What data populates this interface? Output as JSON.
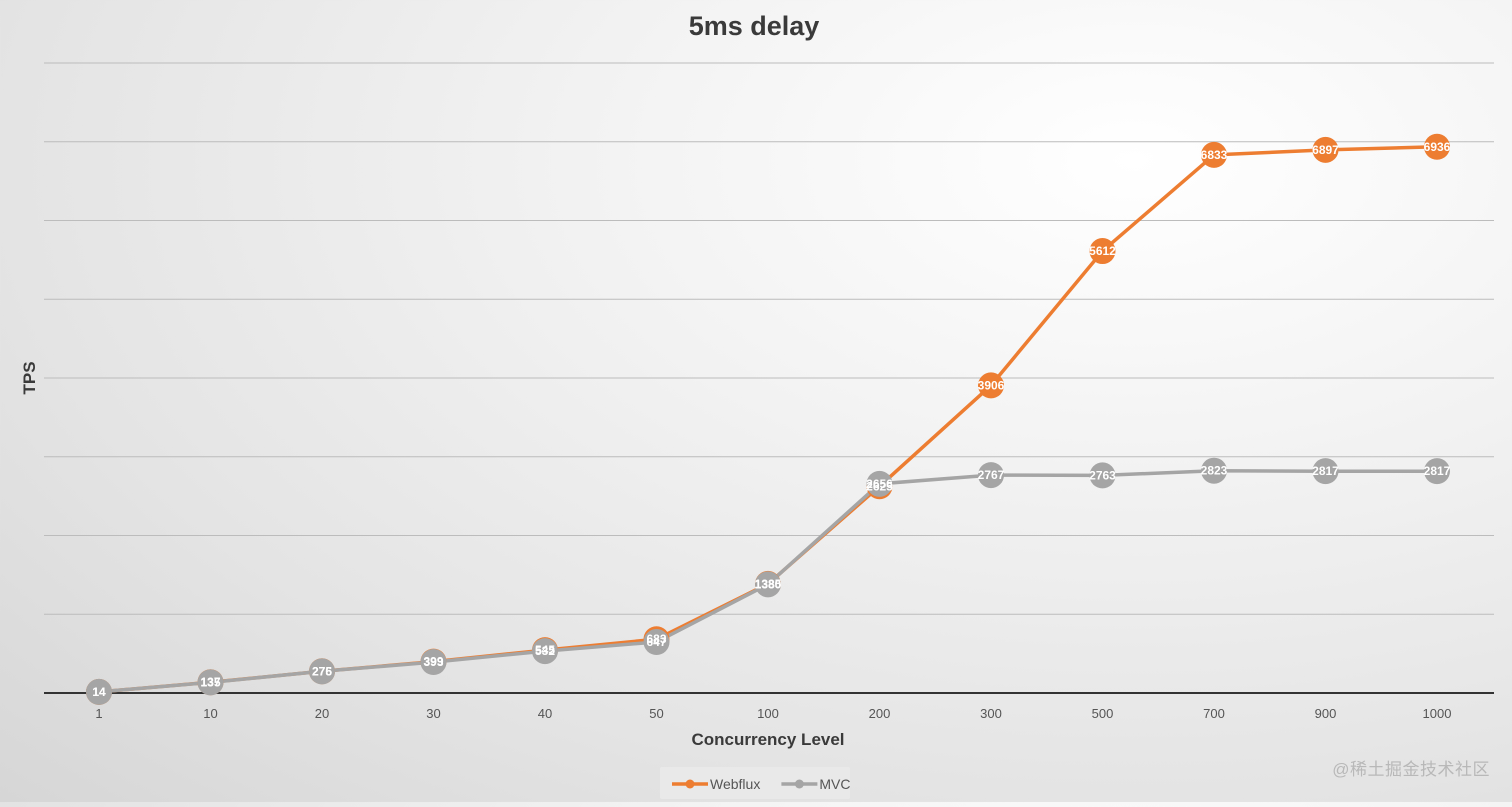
{
  "chart_data": {
    "type": "line",
    "title": "5ms delay",
    "xlabel": "Concurrency Level",
    "ylabel": "TPS",
    "categories": [
      "1",
      "10",
      "20",
      "30",
      "40",
      "50",
      "100",
      "200",
      "300",
      "500",
      "700",
      "900",
      "1000"
    ],
    "ylim": [
      0,
      8000
    ],
    "ytick_step": 1000,
    "grid": true,
    "y_tick_labels_shown": false,
    "legend_position": "bottom",
    "series": [
      {
        "name": "Webflux",
        "color": "#ED7D31",
        "values": [
          14,
          137,
          276,
          399,
          545,
          683,
          1385,
          2625,
          3906,
          5612,
          6833,
          6897,
          6936
        ]
      },
      {
        "name": "MVC",
        "color": "#A5A5A5",
        "values": [
          14,
          135,
          275,
          393,
          532,
          647,
          1380,
          2656,
          2767,
          2763,
          2823,
          2817,
          2817
        ]
      }
    ]
  },
  "watermark": "@稀土掘金技术社区"
}
